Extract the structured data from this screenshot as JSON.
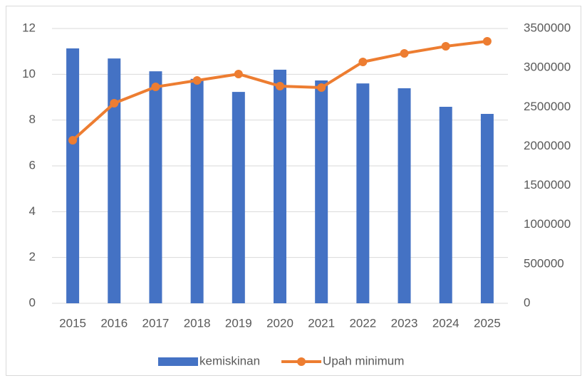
{
  "chart_data": {
    "type": "bar",
    "categories": [
      "2015",
      "2016",
      "2017",
      "2018",
      "2019",
      "2020",
      "2021",
      "2022",
      "2023",
      "2024",
      "2025"
    ],
    "series": [
      {
        "name": "kemiskinan",
        "type": "bar",
        "color": "#4472c4",
        "values": [
          11.13,
          10.69,
          10.13,
          9.8,
          9.23,
          10.2,
          9.73,
          9.6,
          9.39,
          8.58,
          8.27
        ]
      },
      {
        "name": "Upah minimum",
        "type": "line",
        "axis": "y2",
        "color": "#ed7d31",
        "values": [
          2076000,
          2548000,
          2756000,
          2838000,
          2920000,
          2766000,
          2747000,
          3074000,
          3183000,
          3273000,
          3337000
        ]
      }
    ],
    "ylim": [
      0,
      12
    ],
    "yticks": [
      0,
      2,
      4,
      6,
      8,
      10,
      12
    ],
    "y2lim": [
      0,
      3500000
    ],
    "y2ticks": [
      0,
      500000,
      1000000,
      1500000,
      2000000,
      2500000,
      3000000,
      3500000
    ],
    "grid": true,
    "legend": "bottom"
  }
}
